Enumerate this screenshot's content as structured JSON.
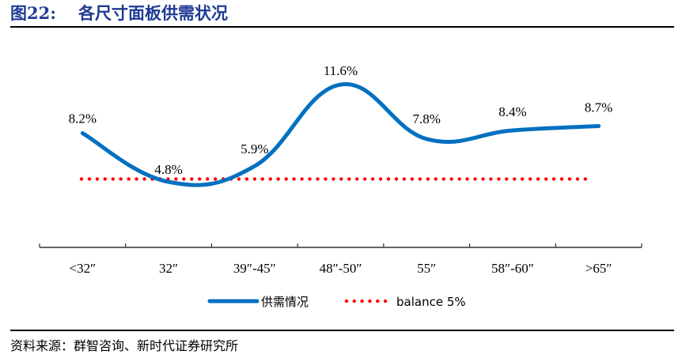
{
  "figure": {
    "number": "图22:",
    "title": "各尺寸面板供需状况"
  },
  "source": "资料来源：群智咨询、新时代证券研究所",
  "colors": {
    "series_line": "#0070C0",
    "balance_line": "#FF0000",
    "title": "#1f3a93"
  },
  "chart_data": {
    "type": "line",
    "title": "各尺寸面板供需状况",
    "xlabel": "",
    "ylabel": "",
    "categories": [
      "<32″",
      "32″",
      "39″-45″",
      "48″-50″",
      "55″",
      "58″-60″",
      ">65″"
    ],
    "series": [
      {
        "name": "供需情况",
        "values": [
          8.2,
          4.8,
          5.9,
          11.6,
          7.8,
          8.4,
          8.7
        ],
        "labels": [
          "8.2%",
          "4.8%",
          "5.9%",
          "11.6%",
          "7.8%",
          "8.4%",
          "8.7%"
        ],
        "style": "smooth-solid",
        "color": "#0070C0"
      },
      {
        "name": "balance 5%",
        "values": [
          5,
          5,
          5,
          5,
          5,
          5,
          5
        ],
        "style": "dotted",
        "color": "#FF0000"
      }
    ],
    "ylim": [
      0,
      13
    ],
    "y_axis_visible": false,
    "grid": false,
    "legend_position": "bottom"
  },
  "legend": {
    "items": [
      {
        "label": "供需情况"
      },
      {
        "label": "balance 5%"
      }
    ]
  }
}
